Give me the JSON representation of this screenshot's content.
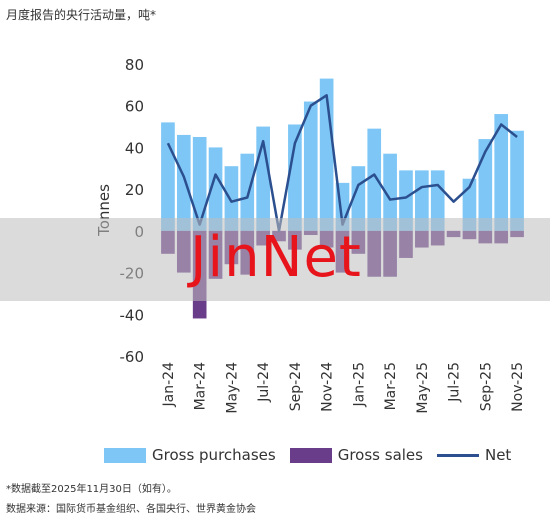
{
  "title": "月度报告的央行活动量，吨*",
  "watermark": "JinNet",
  "footnote": "*数据截至2025年11月30日（如有）。",
  "source": "数据来源：国际货币基金组织、各国央行、世界黄金协会",
  "colors": {
    "purchases": "#7dc6f5",
    "sales": "#6a3d8a",
    "net": "#2b4f8f",
    "axis_text": "#333333"
  },
  "chart_data": {
    "type": "bar",
    "ylabel": "Tonnes",
    "ylim": [
      -60,
      80
    ],
    "yticks": [
      80,
      60,
      40,
      20,
      0,
      -20,
      -40,
      -60
    ],
    "grid": false,
    "legend": "bottom",
    "categories": [
      "Jan-24",
      "Feb-24",
      "Mar-24",
      "Apr-24",
      "May-24",
      "Jun-24",
      "Jul-24",
      "Aug-24",
      "Sep-24",
      "Oct-24",
      "Nov-24",
      "Dec-24",
      "Jan-25",
      "Feb-25",
      "Mar-25",
      "Apr-25",
      "May-25",
      "Jun-25",
      "Jul-25",
      "Aug-25",
      "Sep-25",
      "Oct-25",
      "Nov-25"
    ],
    "xtick_labels": [
      "Jan-24",
      "Mar-24",
      "May-24",
      "Jul-24",
      "Sep-24",
      "Nov-24",
      "Jan-25",
      "Mar-25",
      "May-25",
      "Jul-25",
      "Sep-25",
      "Nov-25"
    ],
    "series": [
      {
        "name": "Gross purchases",
        "kind": "bar",
        "values": [
          52,
          46,
          45,
          40,
          31,
          37,
          50,
          0,
          51,
          62,
          73,
          23,
          31,
          49,
          37,
          29,
          29,
          29,
          0,
          25,
          44,
          56,
          48
        ]
      },
      {
        "name": "Gross sales",
        "kind": "bar",
        "values": [
          -11,
          -20,
          -42,
          -23,
          -16,
          -21,
          -7,
          -5,
          -9,
          -2,
          -8,
          -20,
          -11,
          -22,
          -22,
          -13,
          -8,
          -7,
          -3,
          -4,
          -6,
          -6,
          -3
        ]
      },
      {
        "name": "Net",
        "kind": "line",
        "values": [
          42,
          26,
          3,
          27,
          14,
          16,
          43,
          0,
          42,
          60,
          65,
          3,
          22,
          27,
          15,
          16,
          21,
          22,
          14,
          21,
          38,
          51,
          45
        ]
      }
    ]
  }
}
